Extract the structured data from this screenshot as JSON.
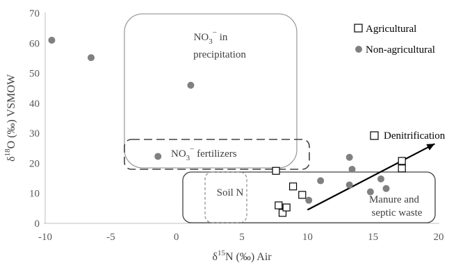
{
  "chart_data": {
    "type": "scatter",
    "xlabel": "δ15N (‰) Air",
    "ylabel": "δ18O (‰) VSMOW",
    "xlim": [
      -10,
      20
    ],
    "ylim": [
      0,
      70
    ],
    "x_ticks": [
      "-10",
      "-5",
      "0",
      "5",
      "10",
      "15",
      "20"
    ],
    "y_ticks": [
      "0",
      "10",
      "20",
      "30",
      "40",
      "50",
      "60",
      "70"
    ],
    "grid": false,
    "legend_position": "top-right",
    "series": [
      {
        "name": "Agricultural",
        "marker": "open-square",
        "color": "#000000",
        "x": [
          7.6,
          7.8,
          8.1,
          8.4,
          8.9,
          9.6,
          17.2,
          17.2
        ],
        "y": [
          17.5,
          6.0,
          3.5,
          5.3,
          12.3,
          9.5,
          20.8,
          18.3
        ]
      },
      {
        "name": "Non-agricultural",
        "marker": "filled-circle",
        "color": "#808080",
        "x": [
          -9.5,
          -6.5,
          1.1,
          -1.4,
          10.1,
          11.0,
          13.2,
          13.2,
          13.4,
          14.8,
          15.6,
          16.0
        ],
        "y": [
          61.0,
          55.2,
          46.0,
          22.3,
          7.7,
          14.2,
          22.0,
          12.8,
          18.0,
          10.5,
          14.8,
          11.6
        ]
      }
    ],
    "regions": [
      {
        "label_line1": "NO",
        "label_sub": "3",
        "label_sup": "−",
        "label_rest": " in",
        "label_line2": "precipitation",
        "style": "solid-gray"
      },
      {
        "label_line1": "NO",
        "label_sub": "3",
        "label_sup": "−",
        "label_rest": " fertilizers",
        "style": "dashed-dark"
      },
      {
        "label_line1": "Soil N",
        "style": "dashed-gray"
      },
      {
        "label_line1": "Manure and",
        "label_line2": "septic waste",
        "style": "solid-dark"
      }
    ],
    "annotations": [
      {
        "label": "Denitrification",
        "marker": "open-square",
        "arrow_from": [
          10.0,
          4.5
        ],
        "arrow_to": [
          19.7,
          26.5
        ]
      }
    ],
    "y_title_parts": {
      "pre": "δ",
      "sup": "18",
      "post": "O (‰) VSMOW"
    },
    "x_title_parts": {
      "pre": "δ",
      "sup": "15",
      "post": "N (‰) Air"
    }
  }
}
